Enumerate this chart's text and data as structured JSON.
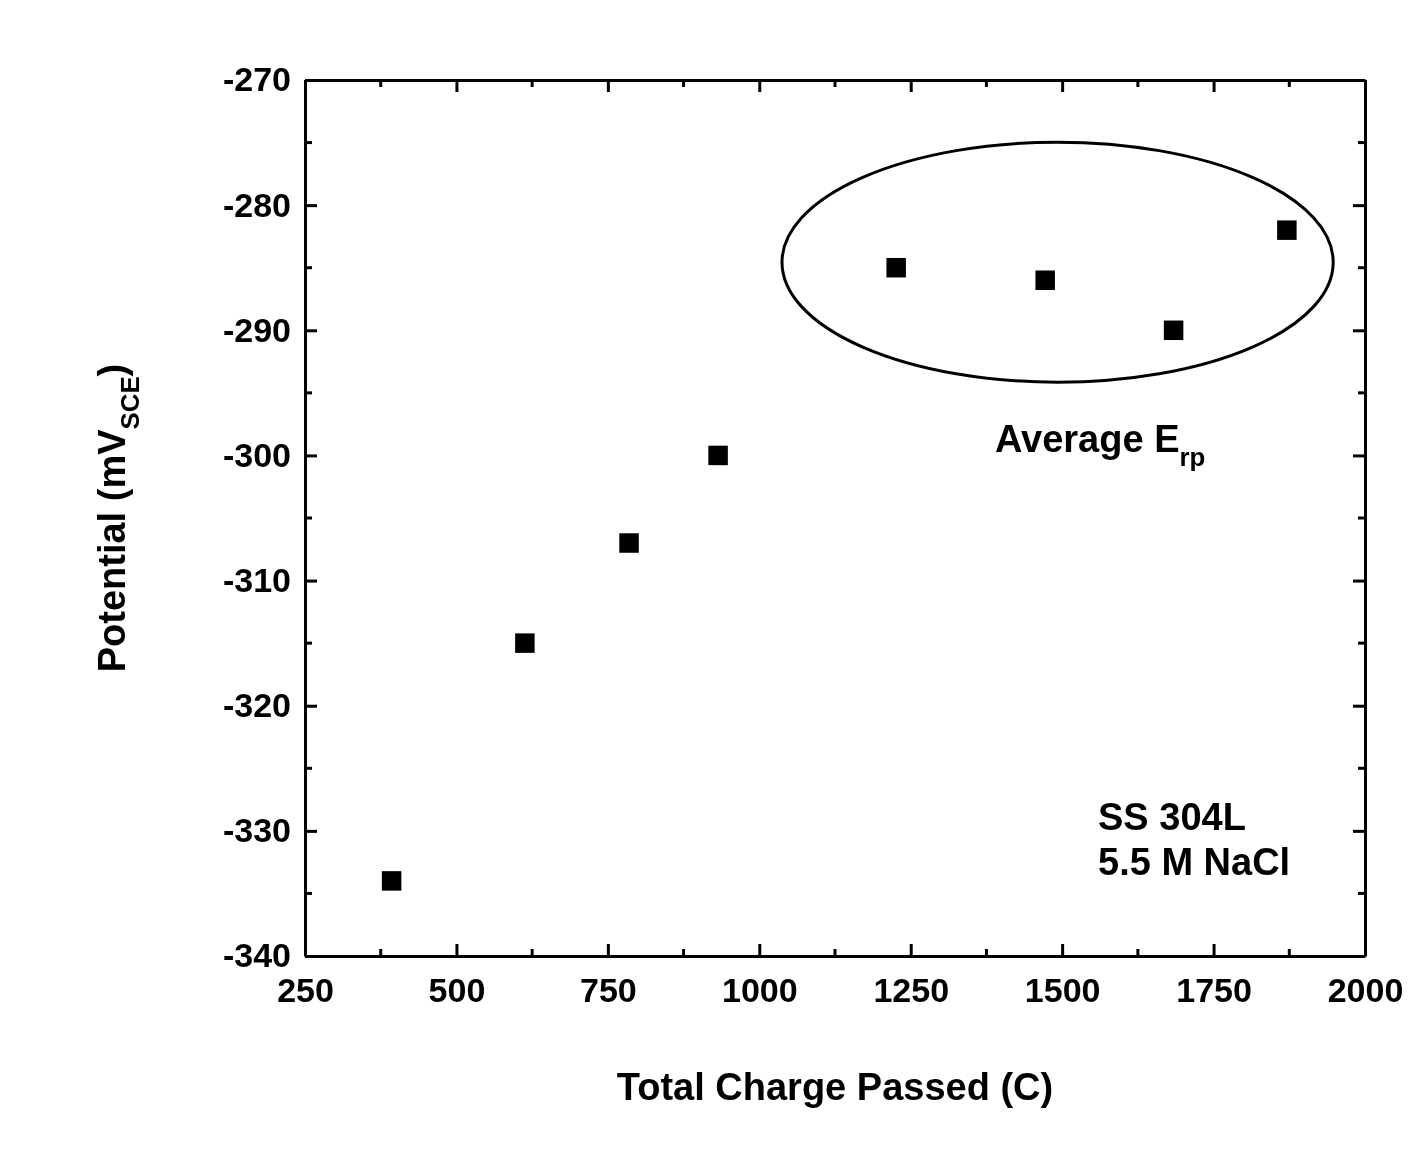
{
  "chart_data": {
    "type": "scatter",
    "xlabel": "Total Charge Passed (C)",
    "ylabel": "Potential (mV$_{SCE}$)",
    "x": [
      393,
      613,
      785,
      932,
      1226,
      1472,
      1684,
      1871
    ],
    "values": [
      -334,
      -315,
      -307,
      -300,
      -285,
      -286,
      -290,
      -282
    ],
    "color": "#000000",
    "marker": "square",
    "xlim": [
      250,
      2000
    ],
    "xticks": [
      250,
      500,
      750,
      1000,
      1250,
      1500,
      1750,
      2000
    ],
    "ylim": [
      -340,
      -270
    ],
    "yticks": [
      -340,
      -330,
      -320,
      -310,
      -300,
      -290,
      -280,
      -270
    ],
    "grid": false,
    "annotations": [
      "Average E$_{rp}$",
      "SS 304L",
      "5.5 M NaCl"
    ]
  }
}
